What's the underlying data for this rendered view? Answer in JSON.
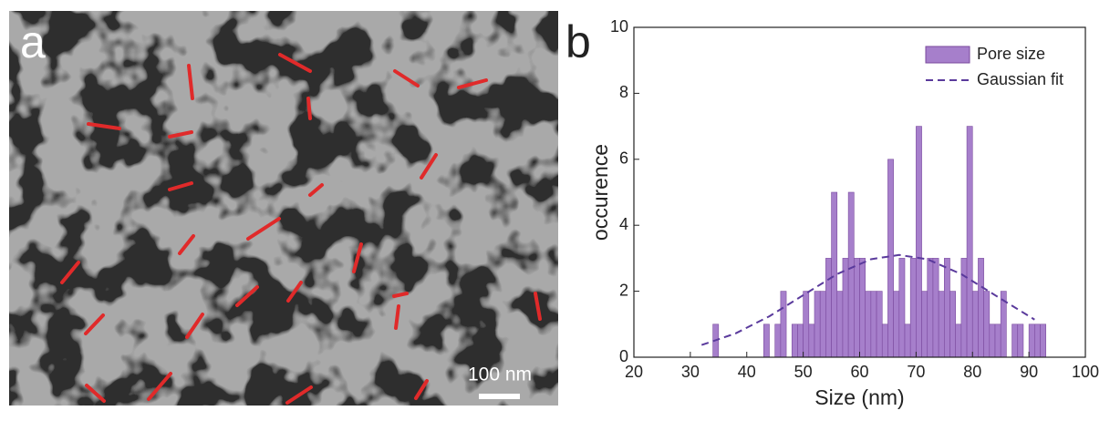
{
  "panel_a": {
    "label": "a",
    "scale_bar": "100 nm"
  },
  "chart_data": {
    "type": "histogram",
    "panel_label": "b",
    "xlabel": "Size (nm)",
    "ylabel": "occurence",
    "bins": [
      34,
      35,
      36,
      37,
      38,
      39,
      40,
      41,
      42,
      43,
      44,
      45,
      46,
      47,
      48,
      49,
      50,
      51,
      52,
      53,
      54,
      55,
      56,
      57,
      58,
      59,
      60,
      61,
      62,
      63,
      64,
      65,
      66,
      67,
      68,
      69,
      70,
      71,
      72,
      73,
      74,
      75,
      76,
      77,
      78,
      79,
      80,
      81,
      82,
      83,
      84,
      85,
      86,
      87,
      88,
      89,
      90,
      91,
      92,
      93
    ],
    "series": [
      {
        "name": "Pore size",
        "color": "#a67fcb",
        "edgecolor": "#7a4a9e",
        "values": [
          1,
          0,
          0,
          0,
          0,
          0,
          0,
          0,
          0,
          1,
          0,
          1,
          2,
          0,
          1,
          1,
          2,
          1,
          2,
          2,
          3,
          5,
          2,
          3,
          5,
          3,
          3,
          2,
          2,
          2,
          1,
          6,
          2,
          3,
          1,
          3,
          7,
          2,
          3,
          3,
          2,
          3,
          2,
          1,
          3,
          7,
          2,
          3,
          2,
          1,
          1,
          2,
          0,
          1,
          1,
          0,
          1,
          1,
          1
        ]
      }
    ],
    "fit": {
      "name": "Gaussian fit",
      "color": "#5a3a9c",
      "x": [
        32,
        38,
        44,
        50,
        56,
        62,
        67,
        72,
        78,
        84,
        91
      ],
      "values": [
        0.37,
        0.72,
        1.24,
        1.88,
        2.52,
        2.97,
        3.1,
        2.97,
        2.52,
        1.88,
        1.14
      ]
    },
    "xlim": [
      20,
      100
    ],
    "xticks": [
      20,
      30,
      40,
      50,
      60,
      70,
      80,
      90,
      100
    ],
    "ylim": [
      0,
      10
    ],
    "yticks": [
      0,
      2,
      4,
      6,
      8,
      10
    ],
    "legend": "upper right"
  }
}
